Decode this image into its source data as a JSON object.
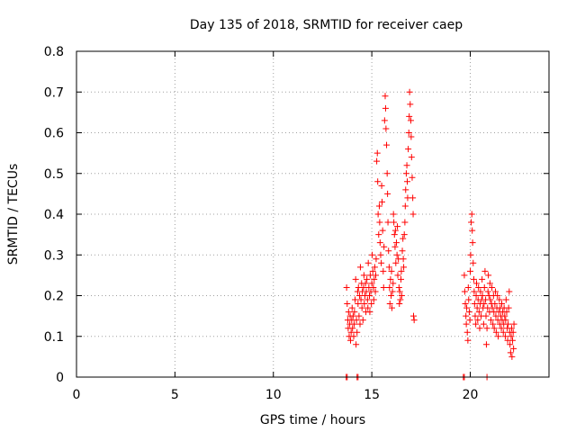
{
  "chart_data": {
    "type": "scatter",
    "title": "Day 135 of 2018, SRMTID for receiver caep",
    "xlabel": "GPS time / hours",
    "ylabel": "SRMTID / TECUs",
    "xlim": [
      0,
      24
    ],
    "ylim": [
      0,
      0.8
    ],
    "xticks": [
      0,
      5,
      10,
      15,
      20
    ],
    "xtick_labels": [
      "0",
      "5",
      "10",
      "15",
      "20"
    ],
    "yticks": [
      0,
      0.1,
      0.2,
      0.3,
      0.4,
      0.5,
      0.6,
      0.7,
      0.8
    ],
    "ytick_labels": [
      "0",
      "0.1",
      "0.2",
      "0.3",
      "0.4",
      "0.5",
      "0.6",
      "0.7",
      "0.8"
    ],
    "grid": true,
    "marker": "+",
    "color": "#ff0000",
    "series": [
      {
        "name": "caep",
        "points": [
          [
            13.7,
            0.0
          ],
          [
            13.75,
            0.0
          ],
          [
            14.25,
            0.0
          ],
          [
            14.3,
            0.0
          ],
          [
            19.65,
            0.0
          ],
          [
            19.7,
            0.0
          ],
          [
            20.85,
            0.0
          ],
          [
            13.72,
            0.22
          ],
          [
            13.75,
            0.18
          ],
          [
            13.78,
            0.14
          ],
          [
            13.8,
            0.12
          ],
          [
            13.82,
            0.16
          ],
          [
            13.85,
            0.1
          ],
          [
            13.88,
            0.13
          ],
          [
            13.9,
            0.15
          ],
          [
            13.92,
            0.09
          ],
          [
            13.95,
            0.11
          ],
          [
            13.98,
            0.14
          ],
          [
            14.0,
            0.17
          ],
          [
            14.02,
            0.12
          ],
          [
            14.05,
            0.15
          ],
          [
            14.08,
            0.1
          ],
          [
            14.1,
            0.13
          ],
          [
            14.12,
            0.16
          ],
          [
            14.15,
            0.19
          ],
          [
            14.18,
            0.24
          ],
          [
            14.2,
            0.08
          ],
          [
            14.22,
            0.14
          ],
          [
            14.25,
            0.11
          ],
          [
            14.28,
            0.21
          ],
          [
            14.3,
            0.18
          ],
          [
            14.32,
            0.22
          ],
          [
            14.35,
            0.15
          ],
          [
            14.38,
            0.2
          ],
          [
            14.4,
            0.13
          ],
          [
            14.42,
            0.27
          ],
          [
            14.45,
            0.19
          ],
          [
            14.48,
            0.23
          ],
          [
            14.5,
            0.17
          ],
          [
            14.52,
            0.21
          ],
          [
            14.55,
            0.14
          ],
          [
            14.58,
            0.22
          ],
          [
            14.6,
            0.25
          ],
          [
            14.62,
            0.18
          ],
          [
            14.65,
            0.2
          ],
          [
            14.68,
            0.23
          ],
          [
            14.7,
            0.16
          ],
          [
            14.72,
            0.21
          ],
          [
            14.75,
            0.24
          ],
          [
            14.78,
            0.19
          ],
          [
            14.8,
            0.17
          ],
          [
            14.82,
            0.28
          ],
          [
            14.85,
            0.22
          ],
          [
            14.88,
            0.2
          ],
          [
            14.9,
            0.16
          ],
          [
            14.92,
            0.25
          ],
          [
            14.95,
            0.21
          ],
          [
            14.98,
            0.18
          ],
          [
            15.0,
            0.23
          ],
          [
            15.02,
            0.3
          ],
          [
            15.05,
            0.26
          ],
          [
            15.08,
            0.22
          ],
          [
            15.1,
            0.19
          ],
          [
            15.12,
            0.24
          ],
          [
            15.15,
            0.27
          ],
          [
            15.18,
            0.21
          ],
          [
            15.2,
            0.25
          ],
          [
            15.22,
            0.29
          ],
          [
            15.25,
            0.53
          ],
          [
            15.28,
            0.55
          ],
          [
            15.3,
            0.48
          ],
          [
            15.32,
            0.4
          ],
          [
            15.35,
            0.35
          ],
          [
            15.38,
            0.42
          ],
          [
            15.4,
            0.38
          ],
          [
            15.42,
            0.33
          ],
          [
            15.45,
            0.3
          ],
          [
            15.48,
            0.28
          ],
          [
            15.5,
            0.47
          ],
          [
            15.52,
            0.43
          ],
          [
            15.55,
            0.36
          ],
          [
            15.58,
            0.26
          ],
          [
            15.6,
            0.22
          ],
          [
            15.62,
            0.32
          ],
          [
            15.65,
            0.63
          ],
          [
            15.68,
            0.69
          ],
          [
            15.7,
            0.66
          ],
          [
            15.72,
            0.61
          ],
          [
            15.75,
            0.57
          ],
          [
            15.78,
            0.5
          ],
          [
            15.8,
            0.45
          ],
          [
            15.82,
            0.38
          ],
          [
            15.85,
            0.31
          ],
          [
            15.88,
            0.27
          ],
          [
            15.9,
            0.22
          ],
          [
            15.92,
            0.18
          ],
          [
            15.95,
            0.24
          ],
          [
            15.98,
            0.2
          ],
          [
            16.0,
            0.26
          ],
          [
            16.02,
            0.17
          ],
          [
            16.05,
            0.21
          ],
          [
            16.08,
            0.23
          ],
          [
            16.1,
            0.4
          ],
          [
            16.12,
            0.38
          ],
          [
            16.15,
            0.35
          ],
          [
            16.18,
            0.32
          ],
          [
            16.2,
            0.36
          ],
          [
            16.22,
            0.28
          ],
          [
            16.25,
            0.33
          ],
          [
            16.28,
            0.3
          ],
          [
            16.3,
            0.37
          ],
          [
            16.32,
            0.25
          ],
          [
            16.35,
            0.29
          ],
          [
            16.38,
            0.22
          ],
          [
            16.4,
            0.18
          ],
          [
            16.42,
            0.21
          ],
          [
            16.45,
            0.19
          ],
          [
            16.48,
            0.24
          ],
          [
            16.5,
            0.26
          ],
          [
            16.52,
            0.2
          ],
          [
            16.55,
            0.31
          ],
          [
            16.58,
            0.34
          ],
          [
            16.6,
            0.29
          ],
          [
            16.62,
            0.27
          ],
          [
            16.65,
            0.35
          ],
          [
            16.68,
            0.38
          ],
          [
            16.7,
            0.42
          ],
          [
            16.72,
            0.46
          ],
          [
            16.75,
            0.5
          ],
          [
            16.78,
            0.52
          ],
          [
            16.8,
            0.48
          ],
          [
            16.82,
            0.44
          ],
          [
            16.85,
            0.56
          ],
          [
            16.88,
            0.6
          ],
          [
            16.9,
            0.64
          ],
          [
            16.92,
            0.7
          ],
          [
            16.95,
            0.67
          ],
          [
            16.98,
            0.63
          ],
          [
            17.0,
            0.59
          ],
          [
            17.02,
            0.54
          ],
          [
            17.05,
            0.49
          ],
          [
            17.08,
            0.44
          ],
          [
            17.1,
            0.4
          ],
          [
            17.12,
            0.15
          ],
          [
            17.15,
            0.14
          ],
          [
            19.7,
            0.25
          ],
          [
            19.72,
            0.21
          ],
          [
            19.75,
            0.18
          ],
          [
            19.78,
            0.15
          ],
          [
            19.8,
            0.13
          ],
          [
            19.82,
            0.17
          ],
          [
            19.85,
            0.11
          ],
          [
            19.88,
            0.09
          ],
          [
            19.9,
            0.22
          ],
          [
            19.92,
            0.19
          ],
          [
            19.95,
            0.16
          ],
          [
            19.98,
            0.14
          ],
          [
            20.0,
            0.26
          ],
          [
            20.02,
            0.3
          ],
          [
            20.05,
            0.38
          ],
          [
            20.08,
            0.4
          ],
          [
            20.1,
            0.36
          ],
          [
            20.12,
            0.33
          ],
          [
            20.15,
            0.28
          ],
          [
            20.18,
            0.24
          ],
          [
            20.2,
            0.21
          ],
          [
            20.22,
            0.18
          ],
          [
            20.25,
            0.15
          ],
          [
            20.28,
            0.13
          ],
          [
            20.3,
            0.2
          ],
          [
            20.32,
            0.23
          ],
          [
            20.35,
            0.17
          ],
          [
            20.38,
            0.14
          ],
          [
            20.4,
            0.19
          ],
          [
            20.42,
            0.22
          ],
          [
            20.45,
            0.16
          ],
          [
            20.48,
            0.12
          ],
          [
            20.5,
            0.18
          ],
          [
            20.52,
            0.21
          ],
          [
            20.55,
            0.15
          ],
          [
            20.58,
            0.19
          ],
          [
            20.6,
            0.24
          ],
          [
            20.62,
            0.2
          ],
          [
            20.65,
            0.17
          ],
          [
            20.68,
            0.13
          ],
          [
            20.7,
            0.18
          ],
          [
            20.72,
            0.22
          ],
          [
            20.75,
            0.26
          ],
          [
            20.78,
            0.19
          ],
          [
            20.8,
            0.15
          ],
          [
            20.82,
            0.08
          ],
          [
            20.85,
            0.12
          ],
          [
            20.88,
            0.17
          ],
          [
            20.9,
            0.21
          ],
          [
            20.92,
            0.25
          ],
          [
            20.95,
            0.2
          ],
          [
            20.98,
            0.16
          ],
          [
            21.0,
            0.23
          ],
          [
            21.02,
            0.19
          ],
          [
            21.05,
            0.14
          ],
          [
            21.08,
            0.18
          ],
          [
            21.1,
            0.22
          ],
          [
            21.12,
            0.17
          ],
          [
            21.15,
            0.13
          ],
          [
            21.18,
            0.2
          ],
          [
            21.2,
            0.16
          ],
          [
            21.22,
            0.12
          ],
          [
            21.25,
            0.18
          ],
          [
            21.28,
            0.21
          ],
          [
            21.3,
            0.15
          ],
          [
            21.32,
            0.11
          ],
          [
            21.35,
            0.17
          ],
          [
            21.38,
            0.2
          ],
          [
            21.4,
            0.14
          ],
          [
            21.42,
            0.1
          ],
          [
            21.45,
            0.16
          ],
          [
            21.48,
            0.19
          ],
          [
            21.5,
            0.13
          ],
          [
            21.52,
            0.17
          ],
          [
            21.55,
            0.15
          ],
          [
            21.58,
            0.12
          ],
          [
            21.6,
            0.18
          ],
          [
            21.62,
            0.14
          ],
          [
            21.65,
            0.16
          ],
          [
            21.68,
            0.11
          ],
          [
            21.7,
            0.13
          ],
          [
            21.72,
            0.17
          ],
          [
            21.75,
            0.15
          ],
          [
            21.78,
            0.1
          ],
          [
            21.8,
            0.14
          ],
          [
            21.82,
            0.19
          ],
          [
            21.85,
            0.16
          ],
          [
            21.88,
            0.12
          ],
          [
            21.9,
            0.09
          ],
          [
            21.92,
            0.13
          ],
          [
            21.95,
            0.17
          ],
          [
            21.98,
            0.21
          ],
          [
            22.0,
            0.11
          ],
          [
            22.02,
            0.08
          ],
          [
            22.05,
            0.06
          ],
          [
            22.08,
            0.1
          ],
          [
            22.1,
            0.12
          ],
          [
            22.12,
            0.05
          ],
          [
            22.15,
            0.09
          ],
          [
            22.18,
            0.11
          ],
          [
            22.2,
            0.07
          ],
          [
            22.22,
            0.13
          ]
        ]
      }
    ]
  }
}
